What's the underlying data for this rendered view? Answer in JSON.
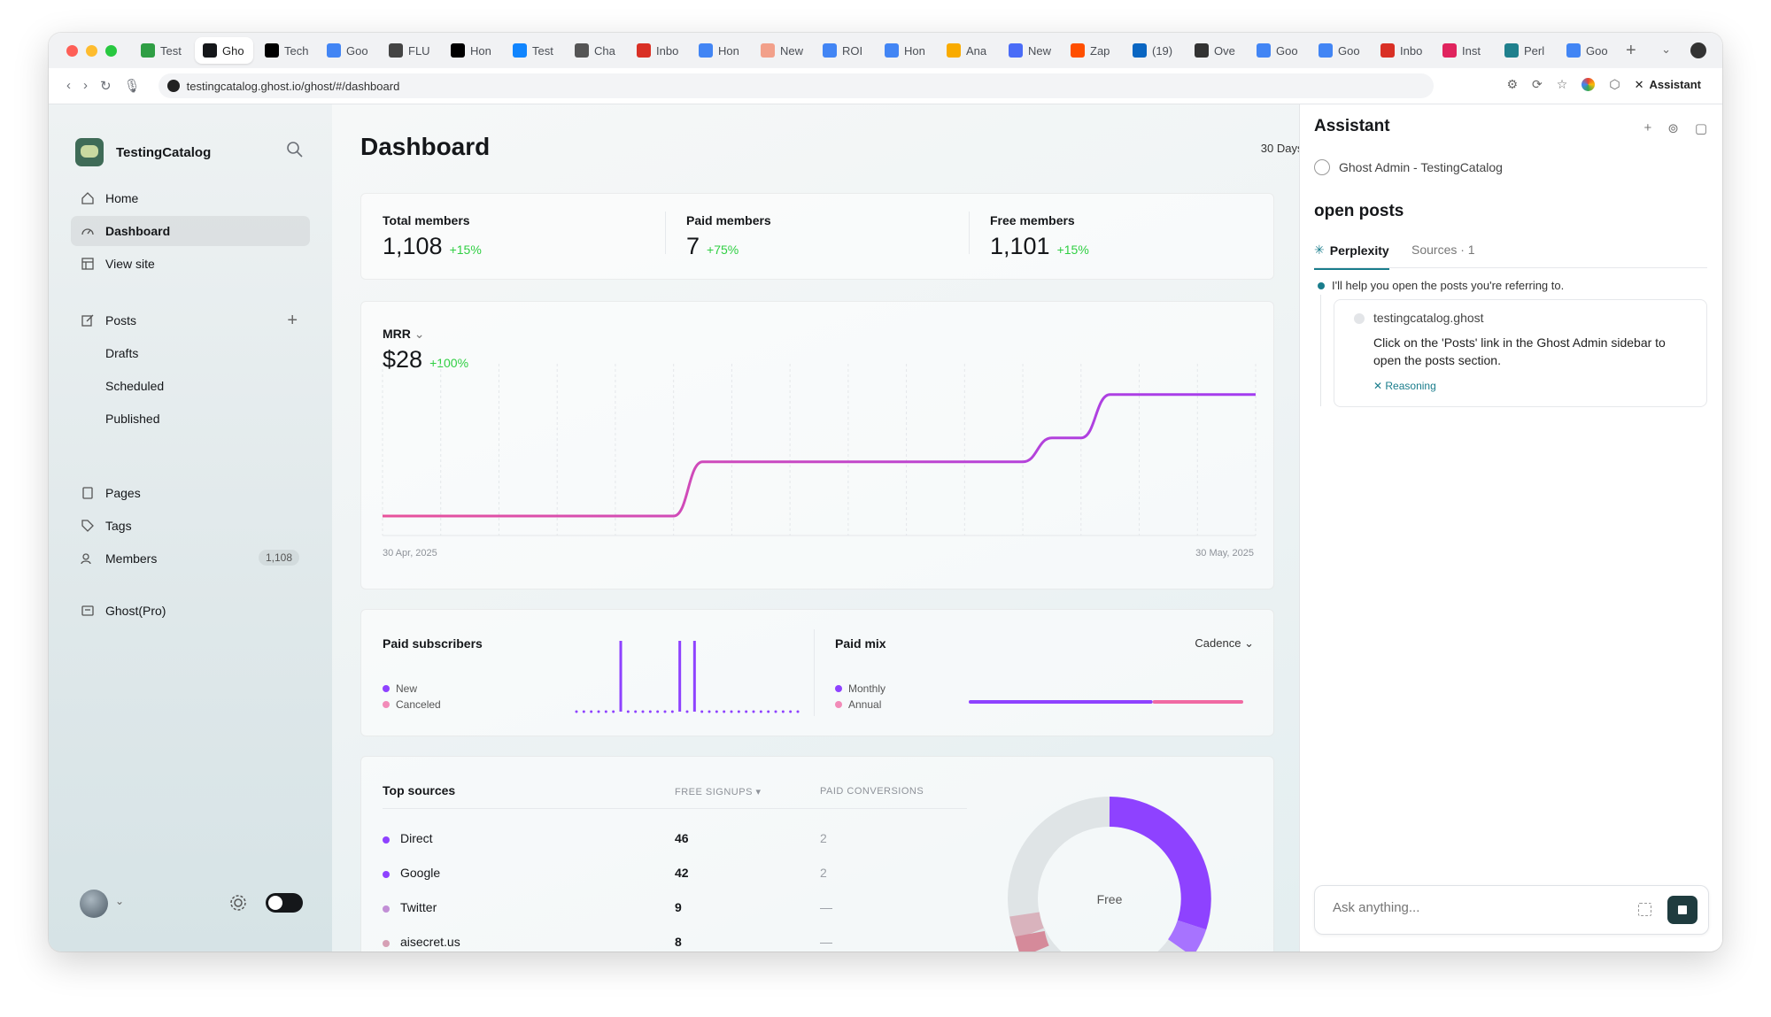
{
  "browser": {
    "tabs": [
      {
        "label": "Test",
        "icon": "table-icon",
        "color": "#2f9e44"
      },
      {
        "label": "Gho",
        "icon": "ghost-icon",
        "color": "#15171a",
        "active": true
      },
      {
        "label": "Tech",
        "icon": "x-icon",
        "color": "#000000"
      },
      {
        "label": "Goo",
        "icon": "google-icon",
        "color": "#4285f4"
      },
      {
        "label": "FLU",
        "icon": "triangle-icon",
        "color": "#444444"
      },
      {
        "label": "Hon",
        "icon": "threads-icon",
        "color": "#000000"
      },
      {
        "label": "Test",
        "icon": "bluesky-icon",
        "color": "#1185fe"
      },
      {
        "label": "Cha",
        "icon": "openai-icon",
        "color": "#555555"
      },
      {
        "label": "Inbo",
        "icon": "gmail-icon",
        "color": "#d93025"
      },
      {
        "label": "Hon",
        "icon": "google-icon",
        "color": "#4285f4"
      },
      {
        "label": "New",
        "icon": "ft-icon",
        "color": "#f2a08a"
      },
      {
        "label": "ROI",
        "icon": "google-icon",
        "color": "#4285f4"
      },
      {
        "label": "Hon",
        "icon": "google-icon",
        "color": "#4285f4"
      },
      {
        "label": "Ana",
        "icon": "analytics-icon",
        "color": "#f9ab00"
      },
      {
        "label": "New",
        "icon": "calendar-icon",
        "color": "#4a6cf7"
      },
      {
        "label": "Zap",
        "icon": "zapier-icon",
        "color": "#ff4f00"
      },
      {
        "label": "(19)",
        "icon": "linkedin-icon",
        "color": "#0a66c2"
      },
      {
        "label": "Ove",
        "icon": "grid-icon",
        "color": "#333333"
      },
      {
        "label": "Goo",
        "icon": "translate-icon",
        "color": "#4285f4"
      },
      {
        "label": "Goo",
        "icon": "translate-icon",
        "color": "#4285f4"
      },
      {
        "label": "Inbo",
        "icon": "gmail-icon",
        "color": "#d93025"
      },
      {
        "label": "Inst",
        "icon": "inst-icon",
        "color": "#e0245e"
      },
      {
        "label": "Perl",
        "icon": "perplexity-icon",
        "color": "#20808d"
      },
      {
        "label": "Goo",
        "icon": "translate-icon",
        "color": "#4285f4"
      }
    ],
    "url": "testingcatalog.ghost.io/ghost/#/dashboard",
    "assistant_button": "Assistant"
  },
  "sidebar": {
    "site_name": "TestingCatalog",
    "items": [
      {
        "label": "Home",
        "icon": "home-icon"
      },
      {
        "label": "Dashboard",
        "icon": "dashboard-icon",
        "active": true
      },
      {
        "label": "View site",
        "icon": "view-site-icon"
      }
    ],
    "posts": {
      "label": "Posts",
      "sub": [
        "Drafts",
        "Scheduled",
        "Published"
      ]
    },
    "items2": [
      {
        "label": "Pages",
        "icon": "pages-icon"
      },
      {
        "label": "Tags",
        "icon": "tag-icon"
      },
      {
        "label": "Members",
        "icon": "members-icon",
        "badge": "1,108"
      }
    ],
    "ghost_pro": "Ghost(Pro)"
  },
  "dashboard": {
    "title": "Dashboard",
    "range": "30 Days",
    "stats": [
      {
        "label": "Total members",
        "value": "1,108",
        "delta": "+15%"
      },
      {
        "label": "Paid members",
        "value": "7",
        "delta": "+75%"
      },
      {
        "label": "Free members",
        "value": "1,101",
        "delta": "+15%"
      }
    ],
    "mrr": {
      "label": "MRR",
      "value": "$28",
      "delta": "+100%",
      "start": "30 Apr, 2025",
      "end": "30 May, 2025"
    },
    "paid_subscribers": {
      "title": "Paid subscribers",
      "legend": [
        "New",
        "Canceled"
      ]
    },
    "paid_mix": {
      "title": "Paid mix",
      "dropdown": "Cadence",
      "legend": [
        "Monthly",
        "Annual"
      ],
      "monthly_share": 0.67
    },
    "top_sources": {
      "title": "Top sources",
      "col_free": "FREE SIGNUPS ▾",
      "col_paid": "PAID CONVERSIONS",
      "rows": [
        {
          "name": "Direct",
          "free": "46",
          "paid": "2"
        },
        {
          "name": "Google",
          "free": "42",
          "paid": "2"
        },
        {
          "name": "Twitter",
          "free": "9",
          "paid": "—"
        },
        {
          "name": "aisecret.us",
          "free": "8",
          "paid": "—"
        }
      ],
      "donut_label": "Free"
    },
    "colors": {
      "accent": "#8e42ff",
      "pink": "#e8529b",
      "green": "#30cf43"
    }
  },
  "chart_data": [
    {
      "type": "line",
      "title": "MRR",
      "x": [
        "30 Apr, 2025",
        "",
        "",
        "",
        "",
        "",
        "",
        "",
        "",
        "",
        "",
        "",
        "",
        "",
        "",
        "",
        "",
        "",
        "",
        "",
        "",
        "",
        "",
        "",
        "",
        "",
        "",
        "",
        "",
        "",
        "30 May, 2025"
      ],
      "series": [
        {
          "values": [
            0,
            0,
            0,
            0,
            0,
            0,
            0,
            0,
            0,
            0,
            0,
            12.5,
            12.5,
            12.5,
            12.5,
            12.5,
            12.5,
            12.5,
            12.5,
            12.5,
            12.5,
            12.5,
            12.5,
            18,
            18,
            28,
            28,
            28,
            28,
            28,
            28
          ]
        }
      ],
      "ylim": [
        0,
        30
      ]
    },
    {
      "type": "bar",
      "title": "Paid subscribers",
      "series": [
        {
          "name": "New",
          "values": [
            0,
            0,
            0,
            0,
            0,
            0,
            1,
            0,
            0,
            0,
            0,
            0,
            0,
            0,
            1,
            0,
            1,
            0,
            0,
            0,
            0,
            0,
            0,
            0,
            0,
            0,
            0,
            0,
            0,
            0,
            0
          ]
        }
      ]
    },
    {
      "type": "bar",
      "title": "Paid mix",
      "categories": [
        "Monthly",
        "Annual"
      ],
      "values": [
        67,
        33
      ]
    }
  ],
  "assistant": {
    "title": "Assistant",
    "context": "Ghost Admin - TestingCatalog",
    "query": "open posts",
    "tab_active": "Perplexity",
    "tab_sources": "Sources · 1",
    "intro": "I'll help you open the posts you're referring to.",
    "step_site": "testingcatalog.ghost",
    "step_text": "Click on the 'Posts' link in the Ghost Admin sidebar to open the posts section.",
    "reasoning": "✕  Reasoning",
    "input_placeholder": "Ask anything..."
  }
}
